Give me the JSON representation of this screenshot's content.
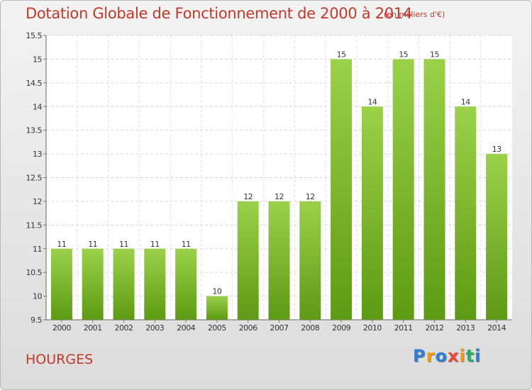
{
  "title": "Dotation Globale de Fonctionnement de 2000 à 2014",
  "subtitle": "(en milliers d'€)",
  "place": "HOURGES",
  "logo": {
    "text": "Proxiti",
    "letters": [
      "P",
      "r",
      "o",
      "x",
      "i",
      "t",
      "i"
    ],
    "colors": [
      "#2f7fd0",
      "#f39c12",
      "#2f7fd0",
      "#e74c3c",
      "#f39c12",
      "#27ae60",
      "#2f7fd0"
    ]
  },
  "colors": {
    "bar_light": "#9bd14a",
    "bar_dark": "#5e9a15",
    "title": "#c0392b"
  },
  "chart_data": {
    "type": "bar",
    "title": "Dotation Globale de Fonctionnement de 2000 à 2014",
    "xlabel": "",
    "ylabel": "",
    "categories": [
      "2000",
      "2001",
      "2002",
      "2003",
      "2004",
      "2005",
      "2006",
      "2007",
      "2008",
      "2009",
      "2010",
      "2011",
      "2012",
      "2013",
      "2014"
    ],
    "values": [
      11,
      11,
      11,
      11,
      11,
      10,
      12,
      12,
      12,
      15,
      14,
      15,
      15,
      14,
      13
    ],
    "value_labels": [
      "11",
      "11",
      "11",
      "11",
      "11",
      "10",
      "12",
      "12",
      "12",
      "15",
      "14",
      "15",
      "15",
      "14",
      "13"
    ],
    "ylim": [
      9.5,
      15.5
    ],
    "yticks": [
      9.5,
      10,
      10.5,
      11,
      11.5,
      12,
      12.5,
      13,
      13.5,
      14,
      14.5,
      15,
      15.5
    ],
    "ytick_labels": [
      "9.5",
      "10",
      "10.5",
      "11",
      "11.5",
      "12",
      "12.5",
      "13",
      "13.5",
      "14",
      "14.5",
      "15",
      "15.5"
    ],
    "grid": true
  }
}
